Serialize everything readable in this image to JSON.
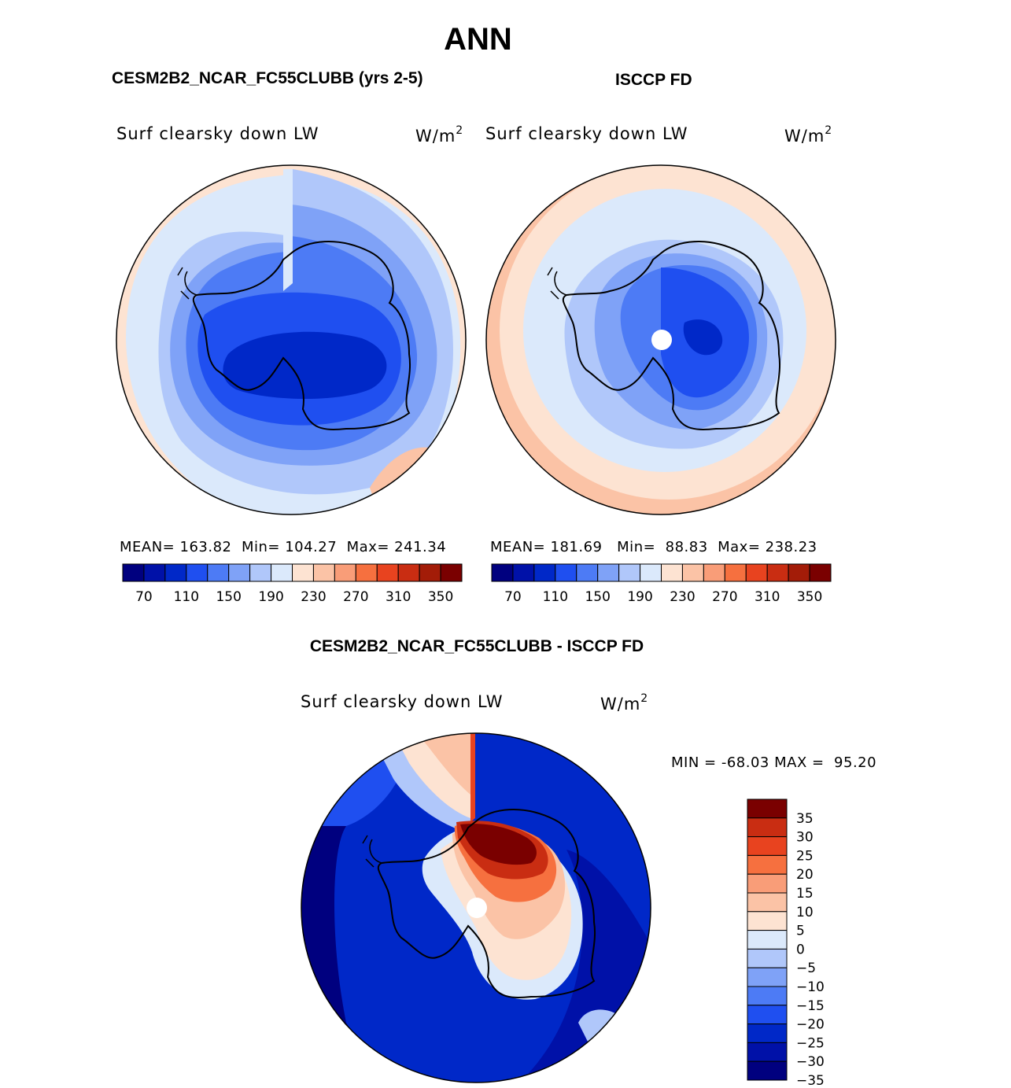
{
  "title": "ANN",
  "panels": {
    "model": {
      "case_title": "CESM2B2_NCAR_FC55CLUBB (yrs 2-5)",
      "variable": "Surf clearsky down LW",
      "units_base": "W/m",
      "units_exp": "2",
      "mean_label": "MEAN=",
      "mean": "163.82",
      "min_label": "Min=",
      "min": "104.27",
      "max_label": "Max=",
      "max": "241.34"
    },
    "obs": {
      "case_title": "ISCCP FD",
      "variable": "Surf clearsky down LW",
      "units_base": "W/m",
      "units_exp": "2",
      "mean_label": "MEAN=",
      "mean": "181.69",
      "min_label": "Min=",
      "min": "88.83",
      "max_label": "Max=",
      "max": "238.23"
    },
    "diff": {
      "case_title": "CESM2B2_NCAR_FC55CLUBB - ISCCP FD",
      "variable": "Surf clearsky down LW",
      "units_base": "W/m",
      "units_exp": "2",
      "min_label": "MIN =",
      "min": "-68.03",
      "max_label": "MAX =",
      "max": "95.20"
    }
  },
  "abs_colorbar": {
    "colors": [
      "#00007f",
      "#0011a8",
      "#0028c8",
      "#1f4ff0",
      "#4d7bf5",
      "#7fa2f7",
      "#b0c7fa",
      "#dbe9fb",
      "#fde3d2",
      "#fbc3a6",
      "#f99d78",
      "#f6703f",
      "#e8431f",
      "#c92d12",
      "#a31c08",
      "#7a0000"
    ],
    "ticks": [
      "70",
      "110",
      "150",
      "190",
      "230",
      "270",
      "310",
      "350"
    ]
  },
  "diff_colorbar": {
    "colors": [
      "#00007f",
      "#0011a8",
      "#0028c8",
      "#1f4ff0",
      "#4d7bf5",
      "#7fa2f7",
      "#b0c7fa",
      "#dbe9fb",
      "#fde3d2",
      "#fbc3a6",
      "#f99d78",
      "#f6703f",
      "#e8431f",
      "#c92d12",
      "#7a0000"
    ],
    "ticks": [
      "35",
      "30",
      "25",
      "20",
      "15",
      "10",
      "5",
      "0",
      "−5",
      "−10",
      "−15",
      "−20",
      "−25",
      "−30",
      "−35"
    ]
  }
}
